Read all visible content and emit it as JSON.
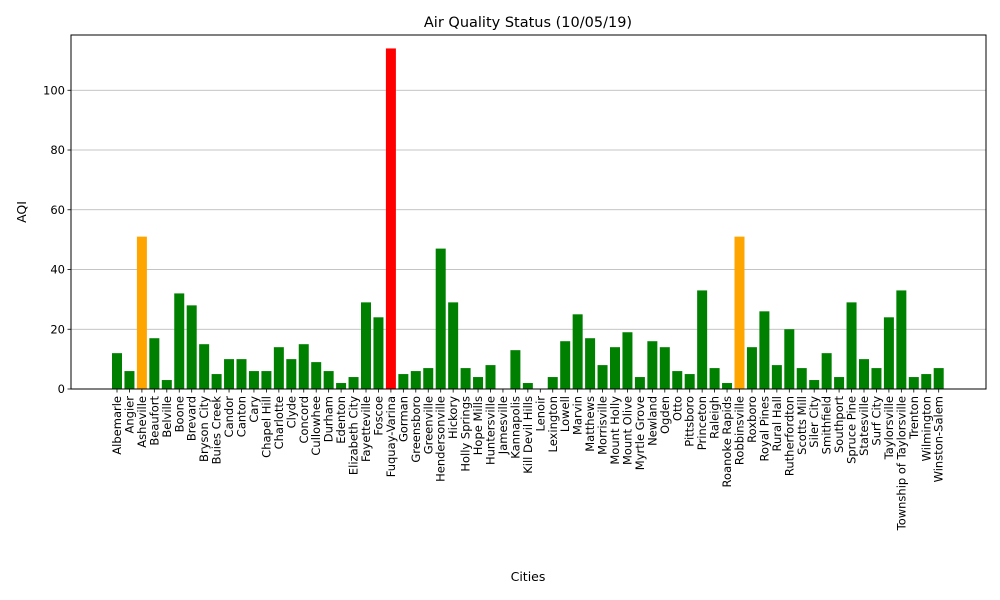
{
  "chart_data": {
    "type": "bar",
    "title": "Air Quality Status (10/05/19)",
    "xlabel": "Cities",
    "ylabel": "AQI",
    "ylim": [
      0,
      118.5
    ],
    "yticks": [
      0,
      20,
      40,
      60,
      80,
      100
    ],
    "grid": "y",
    "legend": "none",
    "colors": {
      "good": "#008000",
      "moderate": "#ffa500",
      "unhealthy": "#ff0000"
    },
    "categories": [
      "Albemarle",
      "Angier",
      "Asheville",
      "Beaufort",
      "Belville",
      "Boone",
      "Brevard",
      "Bryson City",
      "Buies Creek",
      "Candor",
      "Canton",
      "Cary",
      "Chapel Hill",
      "Charlotte",
      "Clyde",
      "Concord",
      "Cullowhee",
      "Durham",
      "Edenton",
      "Elizabeth City",
      "Fayetteville",
      "Foscoe",
      "Fuquay-Varina",
      "Gorman",
      "Greensboro",
      "Greenville",
      "Hendersonville",
      "Hickory",
      "Holly Springs",
      "Hope Mills",
      "Huntersville",
      "Jamesville",
      "Kannapolis",
      "Kill Devil Hills",
      "Lenoir",
      "Lexington",
      "Lowell",
      "Marvin",
      "Matthews",
      "Morrisville",
      "Mount Holly",
      "Mount Olive",
      "Myrtle Grove",
      "Newland",
      "Ogden",
      "Otto",
      "Pittsboro",
      "Princeton",
      "Raleigh",
      "Roanoke Rapids",
      "Robbinsville",
      "Roxboro",
      "Royal Pines",
      "Rural Hall",
      "Rutherfordton",
      "Scotts Mill",
      "Siler City",
      "Smithfield",
      "Southport",
      "Spruce Pine",
      "Statesville",
      "Surf City",
      "Taylorsville",
      "Township of Taylorsville",
      "Trenton",
      "Wilmington",
      "Winston-Salem"
    ],
    "values": [
      12,
      6,
      51,
      17,
      3,
      32,
      28,
      15,
      5,
      10,
      10,
      6,
      6,
      14,
      10,
      15,
      9,
      6,
      2,
      4,
      29,
      24,
      114,
      5,
      6,
      7,
      47,
      29,
      7,
      4,
      8,
      0,
      13,
      2,
      0,
      4,
      16,
      25,
      17,
      8,
      14,
      19,
      4,
      16,
      14,
      6,
      5,
      33,
      7,
      2,
      51,
      14,
      26,
      8,
      20,
      7,
      3,
      12,
      4,
      29,
      10,
      7,
      24,
      33,
      4,
      5,
      7
    ],
    "status": [
      "good",
      "good",
      "moderate",
      "good",
      "good",
      "good",
      "good",
      "good",
      "good",
      "good",
      "good",
      "good",
      "good",
      "good",
      "good",
      "good",
      "good",
      "good",
      "good",
      "good",
      "good",
      "good",
      "unhealthy",
      "good",
      "good",
      "good",
      "good",
      "good",
      "good",
      "good",
      "good",
      "good",
      "good",
      "good",
      "good",
      "good",
      "good",
      "good",
      "good",
      "good",
      "good",
      "good",
      "good",
      "good",
      "good",
      "good",
      "good",
      "good",
      "good",
      "good",
      "moderate",
      "good",
      "good",
      "good",
      "good",
      "good",
      "good",
      "good",
      "good",
      "good",
      "good",
      "good",
      "good",
      "good",
      "good",
      "good",
      "good"
    ]
  }
}
